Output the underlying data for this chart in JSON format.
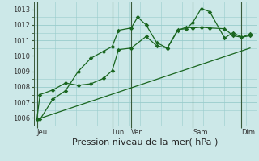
{
  "xlabel": "Pression niveau de la mer( hPa )",
  "bg_color": "#cce8e8",
  "grid_color": "#99cccc",
  "line_color": "#1a6620",
  "dark_line_color": "#2a4a2a",
  "ylim": [
    1005.5,
    1013.5
  ],
  "yticks": [
    1006,
    1007,
    1008,
    1009,
    1010,
    1011,
    1012,
    1013
  ],
  "xlim": [
    0,
    10.5
  ],
  "xtick_positions": [
    0.15,
    3.7,
    4.6,
    7.5,
    9.8
  ],
  "xtick_labels": [
    "Jeu",
    "Lun",
    "Ven",
    "Sam",
    "Dim"
  ],
  "major_vlines": [
    0.15,
    3.7,
    4.6,
    7.5,
    9.8
  ],
  "line1_x": [
    0.15,
    0.3,
    0.9,
    1.5,
    2.1,
    2.7,
    3.3,
    3.7,
    4.0,
    4.6,
    4.9,
    5.3,
    5.8,
    6.3,
    6.8,
    7.2,
    7.5,
    7.9,
    8.3,
    9.0,
    9.4,
    9.8,
    10.2
  ],
  "line1_y": [
    1005.9,
    1005.9,
    1007.2,
    1007.75,
    1009.0,
    1009.85,
    1010.3,
    1010.6,
    1011.65,
    1011.8,
    1012.5,
    1012.0,
    1010.85,
    1010.5,
    1011.7,
    1011.75,
    1012.15,
    1013.05,
    1012.85,
    1011.15,
    1011.5,
    1011.2,
    1011.3
  ],
  "line2_x": [
    0.15,
    0.3,
    0.9,
    1.5,
    2.1,
    2.7,
    3.3,
    3.7,
    4.0,
    4.6,
    5.3,
    5.8,
    6.3,
    6.8,
    7.2,
    7.5,
    7.9,
    8.3,
    9.0,
    9.4,
    9.8,
    10.2
  ],
  "line2_y": [
    1005.9,
    1007.5,
    1007.8,
    1008.25,
    1008.1,
    1008.2,
    1008.55,
    1009.05,
    1010.4,
    1010.5,
    1011.25,
    1010.65,
    1010.5,
    1011.65,
    1011.85,
    1011.8,
    1011.85,
    1011.8,
    1011.75,
    1011.3,
    1011.2,
    1011.4
  ],
  "line3_x": [
    0.15,
    10.2
  ],
  "line3_y": [
    1005.9,
    1010.5
  ],
  "marker_size": 2.8,
  "xlabel_fontsize": 8,
  "tick_fontsize": 6
}
